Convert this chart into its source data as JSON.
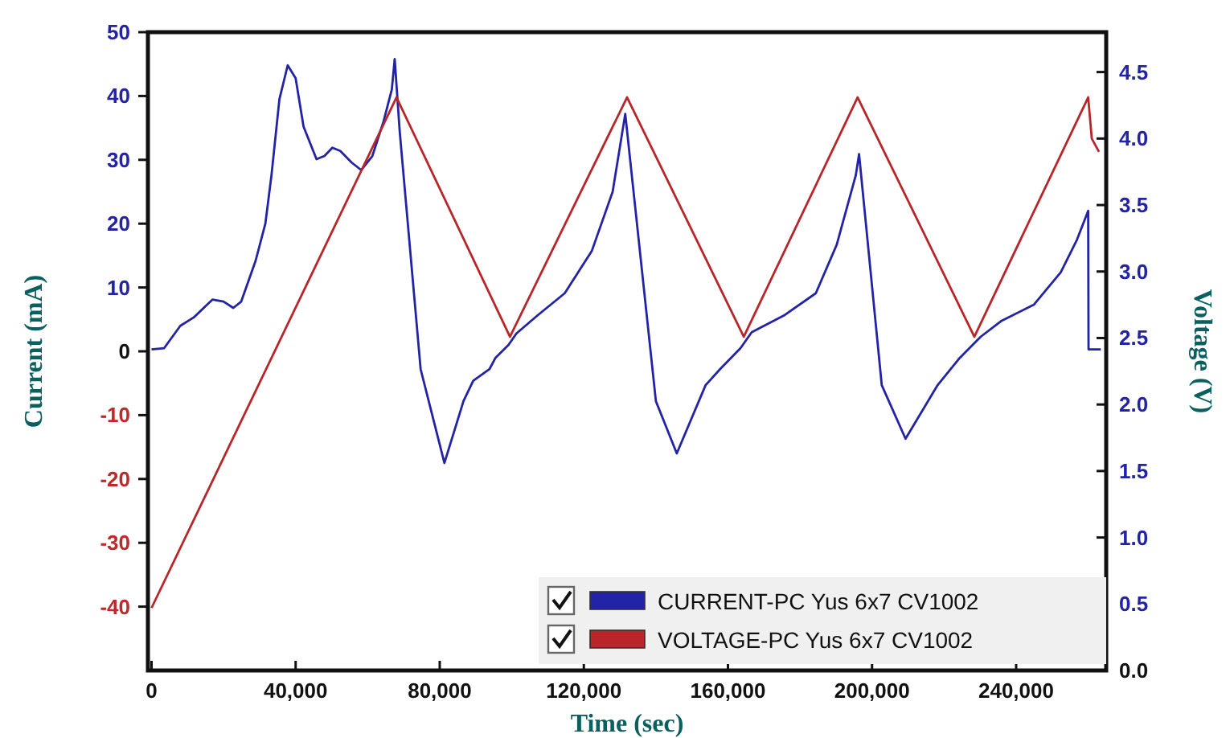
{
  "chart_data": {
    "type": "line",
    "xlabel": "Time (sec)",
    "ylabel": "Current (mA)",
    "y2label": "Voltage (V)",
    "xlim": [
      -1000,
      265000
    ],
    "xticks": [
      {
        "value": 0,
        "label": "0"
      },
      {
        "value": 40000,
        "label": "40,000"
      },
      {
        "value": 80000,
        "label": "80,000"
      },
      {
        "value": 120000,
        "label": "120,000"
      },
      {
        "value": 160000,
        "label": "160,000"
      },
      {
        "value": 200000,
        "label": "200,000"
      },
      {
        "value": 240000,
        "label": "240,000"
      }
    ],
    "ylim": [
      -50,
      50
    ],
    "yticks": [
      -40,
      -30,
      -20,
      -10,
      0,
      10,
      20,
      30,
      40,
      50
    ],
    "y2lim": [
      0,
      4.8
    ],
    "y2ticks": [
      {
        "value": 0,
        "label": "0.0"
      },
      {
        "value": 0.5,
        "label": "0.5"
      },
      {
        "value": 1,
        "label": "1.0"
      },
      {
        "value": 1.5,
        "label": "1.5"
      },
      {
        "value": 2,
        "label": "2.0"
      },
      {
        "value": 2.5,
        "label": "2.5"
      },
      {
        "value": 3,
        "label": "3.0"
      },
      {
        "value": 3.5,
        "label": "3.5"
      },
      {
        "value": 4,
        "label": "4.0"
      },
      {
        "value": 4.5,
        "label": "4.5"
      }
    ],
    "legend": "bottom right",
    "grid": false,
    "marker": "none",
    "line_style": "solid",
    "series": [
      {
        "name": "CURRENT-PC Yus 6x7 CV1002",
        "color": "#2323a6",
        "x": [
          0,
          3500,
          8000,
          11700,
          16900,
          20000,
          22700,
          24900,
          28900,
          31600,
          33300,
          35500,
          37800,
          40000,
          42200,
          45800,
          48000,
          50200,
          52400,
          55500,
          58200,
          61300,
          64400,
          66700,
          67500,
          68900,
          74700,
          81300,
          86600,
          89300,
          93800,
          95500,
          99100,
          101300,
          107100,
          114700,
          122200,
          128000,
          131500,
          140000,
          145800,
          153800,
          157800,
          163500,
          166600,
          175500,
          184400,
          190200,
          195500,
          196400,
          202700,
          209300,
          218200,
          224400,
          230200,
          236000,
          244900,
          252400,
          256900,
          260000,
          260100,
          263500
        ],
        "values": [
          0.3,
          0.5,
          4,
          5.3,
          8.1,
          7.8,
          6.8,
          7.8,
          14.2,
          20,
          27.6,
          39.5,
          44.8,
          42.8,
          35.2,
          30.1,
          30.6,
          31.9,
          31.4,
          29.6,
          28.4,
          30.6,
          36,
          41,
          45.8,
          34.4,
          -2.8,
          -17.5,
          -7.8,
          -4.6,
          -2.8,
          -1,
          1,
          2.8,
          5.6,
          9.1,
          15.7,
          25,
          37.2,
          -7.8,
          -16,
          -5.3,
          -2.8,
          0.5,
          3,
          5.6,
          9.1,
          16.7,
          27.6,
          30.9,
          -5.3,
          -13.7,
          -5.3,
          -1,
          2.3,
          4.8,
          7.3,
          12.4,
          17.5,
          22,
          0.3,
          0.3
        ]
      },
      {
        "name": "VOLTAGE-PC Yus 6x7 CV1002",
        "color": "#b8262a",
        "axis": "y2",
        "x": [
          0,
          68000,
          99500,
          132000,
          164400,
          196000,
          228400,
          260000,
          261000,
          263000
        ],
        "values": [
          0.47,
          4.31,
          2.51,
          4.31,
          2.51,
          4.31,
          2.51,
          4.31,
          4.0,
          3.9
        ]
      }
    ]
  }
}
